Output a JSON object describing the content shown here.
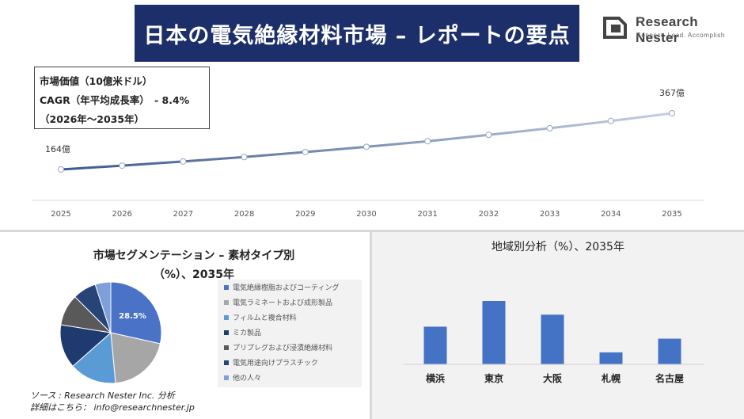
{
  "header": {
    "title": "日本の電気絶縁材料市場 – レポートの要点",
    "logo_name": "Research Nester",
    "logo_tagline": "Connect. Lead. Accomplish"
  },
  "info": {
    "market_value": "市場価値（10億米ドル）",
    "cagr": "CAGR（年平均成長率）　- 8.4%",
    "period": "（2026年～2035年）"
  },
  "segment": {
    "title_line1": "市場セグメンテーション – 素材タイプ別",
    "title_line2": "（%）、2035年"
  },
  "region": {
    "title": "地域別分析（%）、2035年"
  },
  "source": {
    "line1": "ソース : Research Nester Inc. 分析",
    "line2": "詳細はこちら： info@researchnester.jp"
  },
  "colors": {
    "title_bg": "#1d2f6b",
    "pie": [
      "#4a73c8",
      "#a6a6a6",
      "#5b9bd5",
      "#1f3a6e",
      "#595959",
      "#264478",
      "#7f9fd8"
    ],
    "bar": "#4472c4"
  },
  "chart_data": [
    {
      "type": "line",
      "x": [
        2025,
        2026,
        2027,
        2028,
        2029,
        2030,
        2031,
        2032,
        2033,
        2034,
        2035
      ],
      "series": [
        {
          "values": [
            16.4,
            17.8,
            19.3,
            20.9,
            22.7,
            24.6,
            26.6,
            28.9,
            31.3,
            33.9,
            36.7
          ]
        }
      ],
      "annotations": [
        {
          "x": 2025,
          "label": "164億"
        },
        {
          "x": 2035,
          "label": "367億"
        }
      ]
    },
    {
      "type": "pie",
      "categories": [
        "電気絶縁樹脂およびコーティング",
        "電気ラミネートおよび成形製品",
        "フィルムと複合材料",
        "ミカ製品",
        "プリプレグおよび浸漬絶縁材料",
        "電気用途向けプラスチック",
        "他の人々"
      ],
      "values": [
        28.5,
        20,
        15,
        14,
        10,
        7.5,
        5
      ],
      "data_labels": [
        "28.5%"
      ]
    },
    {
      "type": "bar",
      "categories": [
        "横浜",
        "東京",
        "大阪",
        "札幌",
        "名古屋"
      ],
      "values": [
        22,
        37,
        29,
        7,
        15
      ]
    }
  ]
}
